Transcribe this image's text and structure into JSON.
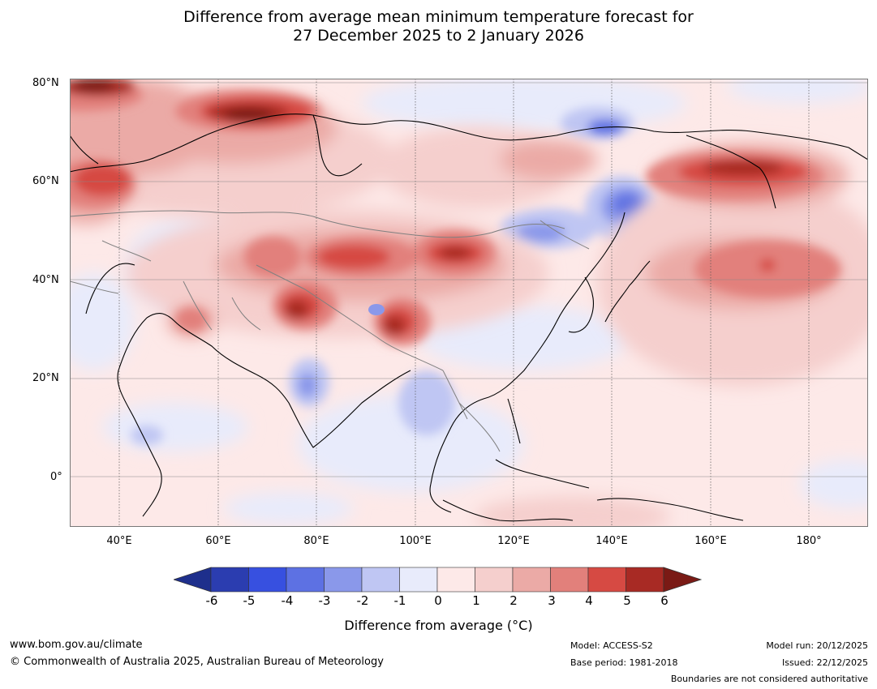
{
  "title": {
    "line1": "Difference from average mean minimum temperature forecast for",
    "line2": "27 December 2025 to 2 January 2026"
  },
  "axes": {
    "lat_labels": [
      "80°N",
      "60°N",
      "40°N",
      "20°N",
      "0°"
    ],
    "lon_labels": [
      "40°E",
      "60°E",
      "80°E",
      "100°E",
      "120°E",
      "140°E",
      "160°E",
      "180°"
    ]
  },
  "colorbar": {
    "title": "Difference from average (°C)",
    "tick_labels": [
      "-6",
      "-5",
      "-4",
      "-3",
      "-2",
      "-1",
      "0",
      "1",
      "2",
      "3",
      "4",
      "5",
      "6"
    ],
    "colors": [
      "#1e2f8c",
      "#2b3db0",
      "#3750e0",
      "#5d71e3",
      "#8a98ea",
      "#bfc6f3",
      "#e8ebfb",
      "#fde9e8",
      "#f5cfcd",
      "#ebaaa6",
      "#e2807b",
      "#d64a43",
      "#a82a24",
      "#7a1a15"
    ]
  },
  "footer": {
    "website": "www.bom.gov.au/climate",
    "copyright": "© Commonwealth of Australia 2025, Australian Bureau of Meteorology",
    "model": "Model: ACCESS-S2",
    "base_period": "Base period: 1981-2018",
    "model_run": "Model run: 20/12/2025",
    "issued": "Issued: 22/12/2025",
    "boundaries_note": "Boundaries are not considered authoritative"
  }
}
